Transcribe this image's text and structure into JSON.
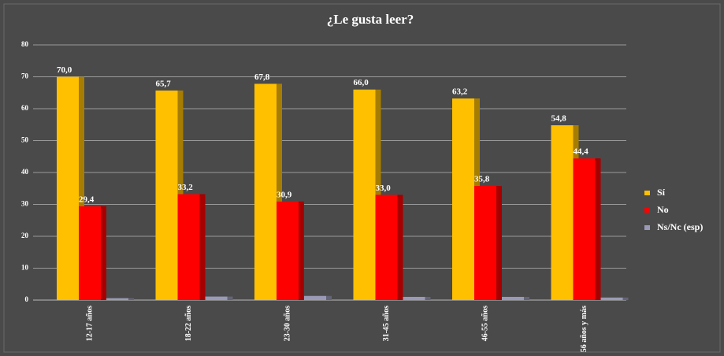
{
  "chart_data": {
    "type": "bar",
    "title": "¿Le gusta leer?",
    "categories": [
      "12-17 años",
      "18-22 años",
      "23-30 años",
      "31-45 años",
      "46-55 años",
      "56 años y más"
    ],
    "series": [
      {
        "name": "Sí",
        "color": "#ffc000",
        "values": [
          70.0,
          65.7,
          67.8,
          66.0,
          63.2,
          54.8
        ],
        "value_labels": [
          "70,0",
          "65,7",
          "67,8",
          "66,0",
          "63,2",
          "54,8"
        ]
      },
      {
        "name": "No",
        "color": "#ff0000",
        "values": [
          29.4,
          33.2,
          30.9,
          33.0,
          35.8,
          44.4
        ],
        "value_labels": [
          "29,4",
          "33,2",
          "30,9",
          "33,0",
          "35,8",
          "44,4"
        ]
      },
      {
        "name": "Ns/Nc (esp)",
        "color": "#9a9ab8",
        "values": [
          0.6,
          1.1,
          1.3,
          1.0,
          1.0,
          0.8
        ]
      }
    ],
    "ylim": [
      0,
      80
    ],
    "yticks": [
      0,
      10,
      20,
      30,
      40,
      50,
      60,
      70,
      80
    ],
    "grid": true,
    "legend": "right"
  }
}
